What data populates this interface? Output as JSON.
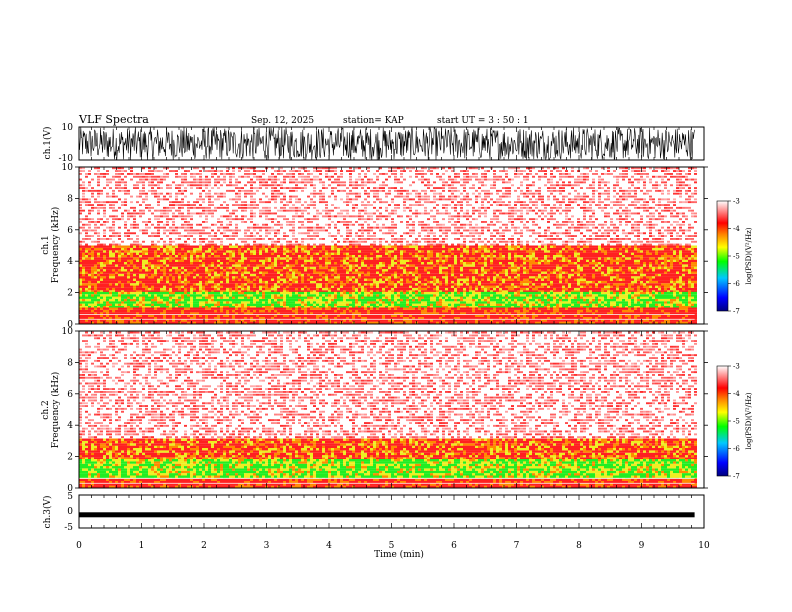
{
  "header": {
    "title": "VLF Spectra",
    "date": "Sep. 12, 2025",
    "station": "station= KAP",
    "start_ut": "start  UT =   3  : 50 : 1"
  },
  "chart_data": [
    {
      "type": "line",
      "id": "ch1_waveform",
      "ylabel": "ch.1(V)",
      "ylim": [
        -10,
        10
      ],
      "yticks": [
        "10",
        "-10"
      ],
      "xlim": [
        0,
        9.85
      ],
      "description": "dense noise waveform spanning nearly full range"
    },
    {
      "type": "heatmap",
      "id": "ch1_spectrogram",
      "ylabel_top": "ch.1",
      "ylabel": "Frequency  (kHz)",
      "ylim": [
        0,
        10
      ],
      "yticks": [
        "0",
        "2",
        "4",
        "6",
        "8",
        "10"
      ],
      "colorbar": {
        "label": "log(PSD)(V²/Hz)",
        "range": [
          -7,
          -3
        ],
        "ticks": [
          "-3",
          "-4",
          "-5",
          "-6",
          "-7"
        ]
      },
      "band_structure_khz": {
        "green_band": [
          1.0,
          2.0
        ],
        "yellow_orange_band": [
          2.0,
          5.0
        ],
        "red_background": [
          0,
          10
        ]
      }
    },
    {
      "type": "heatmap",
      "id": "ch2_spectrogram",
      "ylabel_top": "ch.2",
      "ylabel": "Frequency  (kHz)",
      "ylim": [
        0,
        10
      ],
      "yticks": [
        "0",
        "2",
        "4",
        "6",
        "8",
        "10"
      ],
      "colorbar": {
        "label": "log(PSD)(V²/Hz)",
        "range": [
          -7,
          -3
        ],
        "ticks": [
          "-3",
          "-4",
          "-5",
          "-6",
          "-7"
        ]
      },
      "band_structure_khz": {
        "green_band": [
          0.5,
          1.8
        ],
        "yellow_orange_band": [
          1.8,
          3.0
        ],
        "red_background": [
          0,
          10
        ]
      }
    },
    {
      "type": "line",
      "id": "ch3_waveform",
      "ylabel": "ch.3(V)",
      "ylim": [
        -5,
        5
      ],
      "yticks": [
        "5",
        "0",
        "-5"
      ],
      "value_approx": -1,
      "xlim": [
        0,
        9.85
      ]
    }
  ],
  "xaxis": {
    "label": "Time  (min)",
    "range": [
      0,
      10
    ],
    "ticks": [
      "0",
      "1",
      "2",
      "3",
      "4",
      "5",
      "6",
      "7",
      "8",
      "9",
      "10"
    ]
  },
  "colors": {
    "spectrogram_red": "#ff2020",
    "spectrogram_green": "#22ee22",
    "spectrogram_yellow": "#eeee22",
    "axis": "#000000"
  }
}
